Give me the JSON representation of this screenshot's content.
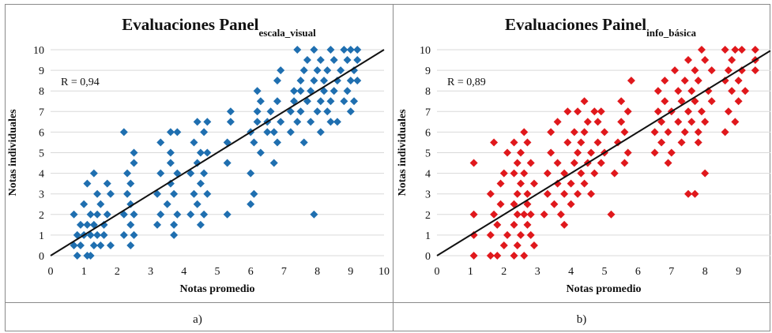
{
  "chart_data": [
    {
      "type": "scatter",
      "title": "Evaluaciones Panel",
      "title_subscript": "escala_visual",
      "xlabel": "Notas promedio",
      "ylabel": "Notas individuales",
      "xlim": [
        0,
        10
      ],
      "ylim": [
        0,
        10
      ],
      "xticks": [
        0,
        1,
        2,
        3,
        4,
        5,
        6,
        7,
        8,
        9,
        10
      ],
      "yticks": [
        0,
        1,
        2,
        3,
        4,
        5,
        6,
        7,
        8,
        9,
        10
      ],
      "annotation": "R = 0,94",
      "marker_color": "#1f6fb0",
      "trendline": {
        "x": [
          0,
          10
        ],
        "y": [
          0,
          10
        ]
      },
      "grid": "horizontal",
      "caption": "a)",
      "points": [
        [
          0.7,
          0.5
        ],
        [
          0.8,
          1
        ],
        [
          0.7,
          2
        ],
        [
          0.9,
          1.5
        ],
        [
          0.8,
          0
        ],
        [
          0.9,
          0.5
        ],
        [
          1,
          1
        ],
        [
          1,
          2.5
        ],
        [
          1.1,
          0
        ],
        [
          1.1,
          1.5
        ],
        [
          1.1,
          3.5
        ],
        [
          1.2,
          0
        ],
        [
          1.2,
          1
        ],
        [
          1.2,
          2
        ],
        [
          1.3,
          0.5
        ],
        [
          1.3,
          1.5
        ],
        [
          1.3,
          4
        ],
        [
          1.4,
          1
        ],
        [
          1.4,
          2
        ],
        [
          1.4,
          3
        ],
        [
          1.5,
          0.5
        ],
        [
          1.5,
          2.5
        ],
        [
          1.6,
          1
        ],
        [
          1.6,
          1.5
        ],
        [
          1.7,
          2
        ],
        [
          1.7,
          3.5
        ],
        [
          1.8,
          0.5
        ],
        [
          1.8,
          3
        ],
        [
          2.2,
          1
        ],
        [
          2.2,
          2
        ],
        [
          2.2,
          6
        ],
        [
          2.3,
          3
        ],
        [
          2.3,
          4
        ],
        [
          2.4,
          0.5
        ],
        [
          2.4,
          1.5
        ],
        [
          2.4,
          2.5
        ],
        [
          2.4,
          3.5
        ],
        [
          2.5,
          1
        ],
        [
          2.5,
          2
        ],
        [
          2.5,
          4.5
        ],
        [
          2.5,
          5
        ],
        [
          3.2,
          1.5
        ],
        [
          3.2,
          3
        ],
        [
          3.3,
          2
        ],
        [
          3.3,
          4
        ],
        [
          3.3,
          5.5
        ],
        [
          3.5,
          2.5
        ],
        [
          3.6,
          3.5
        ],
        [
          3.6,
          4.5
        ],
        [
          3.6,
          5
        ],
        [
          3.6,
          6
        ],
        [
          3.7,
          1
        ],
        [
          3.7,
          1.5
        ],
        [
          3.7,
          3
        ],
        [
          3.8,
          2
        ],
        [
          3.8,
          4
        ],
        [
          3.8,
          6
        ],
        [
          4.2,
          2
        ],
        [
          4.2,
          4
        ],
        [
          4.3,
          5.5
        ],
        [
          4.3,
          3
        ],
        [
          4.4,
          2.5
        ],
        [
          4.4,
          4.5
        ],
        [
          4.4,
          6.5
        ],
        [
          4.5,
          1.5
        ],
        [
          4.5,
          3.5
        ],
        [
          4.5,
          5
        ],
        [
          4.6,
          2
        ],
        [
          4.6,
          4
        ],
        [
          4.6,
          6
        ],
        [
          4.7,
          3
        ],
        [
          4.7,
          5
        ],
        [
          4.7,
          6.5
        ],
        [
          5.3,
          2
        ],
        [
          5.3,
          4.5
        ],
        [
          5.3,
          5.5
        ],
        [
          5.4,
          6.5
        ],
        [
          5.4,
          7
        ],
        [
          6,
          2.5
        ],
        [
          6,
          4
        ],
        [
          6,
          6
        ],
        [
          6.1,
          3
        ],
        [
          6.1,
          5.5
        ],
        [
          6.2,
          6.5
        ],
        [
          6.2,
          7
        ],
        [
          6.2,
          8
        ],
        [
          6.3,
          5
        ],
        [
          6.3,
          7.5
        ],
        [
          6.5,
          6
        ],
        [
          6.5,
          6.5
        ],
        [
          6.6,
          7
        ],
        [
          6.7,
          4.5
        ],
        [
          6.7,
          6
        ],
        [
          6.8,
          5.5
        ],
        [
          6.8,
          7.5
        ],
        [
          6.8,
          8.5
        ],
        [
          6.9,
          6.5
        ],
        [
          6.9,
          9
        ],
        [
          7.2,
          6
        ],
        [
          7.2,
          7
        ],
        [
          7.3,
          7.5
        ],
        [
          7.3,
          8
        ],
        [
          7.4,
          10
        ],
        [
          7.4,
          6.5
        ],
        [
          7.5,
          7
        ],
        [
          7.5,
          8
        ],
        [
          7.5,
          8.5
        ],
        [
          7.6,
          9
        ],
        [
          7.6,
          5.5
        ],
        [
          7.7,
          7.5
        ],
        [
          7.7,
          9.5
        ],
        [
          7.8,
          6.5
        ],
        [
          7.8,
          8
        ],
        [
          7.9,
          2
        ],
        [
          7.9,
          8.5
        ],
        [
          7.9,
          10
        ],
        [
          8,
          7
        ],
        [
          8,
          9
        ],
        [
          8.1,
          6
        ],
        [
          8.1,
          7.5
        ],
        [
          8.1,
          9.5
        ],
        [
          8.2,
          8
        ],
        [
          8.2,
          8.5
        ],
        [
          8.3,
          7
        ],
        [
          8.3,
          9
        ],
        [
          8.4,
          6.5
        ],
        [
          8.4,
          7.5
        ],
        [
          8.4,
          10
        ],
        [
          8.5,
          8
        ],
        [
          8.5,
          9.5
        ],
        [
          8.6,
          6.5
        ],
        [
          8.6,
          8.5
        ],
        [
          8.7,
          9
        ],
        [
          8.8,
          7.5
        ],
        [
          8.8,
          10
        ],
        [
          8.9,
          8
        ],
        [
          8.9,
          9.5
        ],
        [
          9,
          7
        ],
        [
          9,
          8.5
        ],
        [
          9,
          10
        ],
        [
          9.1,
          7.5
        ],
        [
          9.1,
          9
        ],
        [
          9.2,
          8.5
        ],
        [
          9.2,
          9.5
        ],
        [
          9.2,
          10
        ]
      ]
    },
    {
      "type": "scatter",
      "title": "Evaluaciones Painel",
      "title_subscript": "info_básica",
      "xlabel": "Notas promedio",
      "ylabel": "Notas individuales",
      "xlim": [
        0,
        10
      ],
      "ylim": [
        0,
        10
      ],
      "xticks": [
        0,
        1,
        2,
        3,
        4,
        5,
        6,
        7,
        8,
        9,
        10
      ],
      "yticks": [
        0,
        1,
        2,
        3,
        4,
        5,
        6,
        7,
        8,
        9,
        10
      ],
      "annotation": "R = 0,89",
      "marker_color": "#e0181c",
      "trendline": {
        "x": [
          0,
          10
        ],
        "y": [
          0,
          10
        ]
      },
      "grid": "horizontal",
      "caption": "b)",
      "points": [
        [
          1.1,
          0
        ],
        [
          1.1,
          1
        ],
        [
          1.1,
          2
        ],
        [
          1.1,
          4.5
        ],
        [
          1.6,
          0
        ],
        [
          1.6,
          1
        ],
        [
          1.6,
          3
        ],
        [
          1.7,
          2
        ],
        [
          1.7,
          5.5
        ],
        [
          1.8,
          0
        ],
        [
          1.8,
          1.5
        ],
        [
          1.9,
          2.5
        ],
        [
          1.9,
          3.5
        ],
        [
          2,
          0.5
        ],
        [
          2,
          4
        ],
        [
          2.1,
          1
        ],
        [
          2.1,
          5
        ],
        [
          2.3,
          0
        ],
        [
          2.3,
          1.5
        ],
        [
          2.3,
          2.5
        ],
        [
          2.3,
          4
        ],
        [
          2.3,
          5.5
        ],
        [
          2.4,
          0.5
        ],
        [
          2.4,
          2
        ],
        [
          2.4,
          3
        ],
        [
          2.4,
          4.5
        ],
        [
          2.5,
          1
        ],
        [
          2.5,
          3.5
        ],
        [
          2.5,
          5
        ],
        [
          2.6,
          0
        ],
        [
          2.6,
          2
        ],
        [
          2.6,
          4
        ],
        [
          2.6,
          6
        ],
        [
          2.7,
          1.5
        ],
        [
          2.7,
          2.5
        ],
        [
          2.7,
          3
        ],
        [
          2.7,
          5.5
        ],
        [
          2.8,
          1
        ],
        [
          2.8,
          2
        ],
        [
          2.8,
          4.5
        ],
        [
          2.9,
          0.5
        ],
        [
          2.9,
          3.5
        ],
        [
          3.2,
          2
        ],
        [
          3.3,
          3
        ],
        [
          3.3,
          4
        ],
        [
          3.4,
          5
        ],
        [
          3.4,
          6
        ],
        [
          3.5,
          2.5
        ],
        [
          3.6,
          3.5
        ],
        [
          3.6,
          4.5
        ],
        [
          3.6,
          6.5
        ],
        [
          3.7,
          2
        ],
        [
          3.8,
          1.5
        ],
        [
          3.8,
          3
        ],
        [
          3.8,
          4
        ],
        [
          3.9,
          5.5
        ],
        [
          3.9,
          7
        ],
        [
          4,
          2.5
        ],
        [
          4,
          3.5
        ],
        [
          4.1,
          4.5
        ],
        [
          4.1,
          6
        ],
        [
          4.2,
          3
        ],
        [
          4.2,
          5
        ],
        [
          4.2,
          7
        ],
        [
          4.3,
          4
        ],
        [
          4.3,
          5.5
        ],
        [
          4.4,
          3.5
        ],
        [
          4.4,
          6
        ],
        [
          4.4,
          7.5
        ],
        [
          4.5,
          4.5
        ],
        [
          4.5,
          6.5
        ],
        [
          4.6,
          3
        ],
        [
          4.6,
          5
        ],
        [
          4.7,
          4
        ],
        [
          4.7,
          7
        ],
        [
          4.8,
          5.5
        ],
        [
          4.8,
          6.5
        ],
        [
          4.9,
          4.5
        ],
        [
          4.9,
          7
        ],
        [
          5,
          5
        ],
        [
          5,
          6
        ],
        [
          5.2,
          2
        ],
        [
          5.3,
          4
        ],
        [
          5.4,
          5.5
        ],
        [
          5.5,
          6.5
        ],
        [
          5.5,
          7.5
        ],
        [
          5.6,
          4.5
        ],
        [
          5.6,
          6
        ],
        [
          5.7,
          5
        ],
        [
          5.7,
          7
        ],
        [
          5.8,
          8.5
        ],
        [
          6.5,
          5
        ],
        [
          6.5,
          6
        ],
        [
          6.6,
          7
        ],
        [
          6.6,
          8
        ],
        [
          6.7,
          5.5
        ],
        [
          6.7,
          6.5
        ],
        [
          6.8,
          7.5
        ],
        [
          6.8,
          8.5
        ],
        [
          6.9,
          4.5
        ],
        [
          6.9,
          6
        ],
        [
          7,
          5
        ],
        [
          7,
          7
        ],
        [
          7.1,
          9
        ],
        [
          7.2,
          6.5
        ],
        [
          7.2,
          8
        ],
        [
          7.3,
          5.5
        ],
        [
          7.3,
          7.5
        ],
        [
          7.4,
          6
        ],
        [
          7.4,
          8.5
        ],
        [
          7.5,
          3
        ],
        [
          7.5,
          7
        ],
        [
          7.5,
          9.5
        ],
        [
          7.6,
          6.5
        ],
        [
          7.6,
          8
        ],
        [
          7.7,
          3
        ],
        [
          7.7,
          7.5
        ],
        [
          7.7,
          9
        ],
        [
          7.8,
          5.5
        ],
        [
          7.8,
          6
        ],
        [
          7.8,
          8.5
        ],
        [
          7.9,
          7
        ],
        [
          7.9,
          10
        ],
        [
          8,
          4
        ],
        [
          8,
          6.5
        ],
        [
          8,
          9.5
        ],
        [
          8.1,
          8
        ],
        [
          8.2,
          7.5
        ],
        [
          8.2,
          9
        ],
        [
          8.6,
          6
        ],
        [
          8.6,
          8.5
        ],
        [
          8.6,
          10
        ],
        [
          8.7,
          7
        ],
        [
          8.7,
          9
        ],
        [
          8.8,
          8
        ],
        [
          8.8,
          9.5
        ],
        [
          8.9,
          6.5
        ],
        [
          8.9,
          10
        ],
        [
          9,
          7.5
        ],
        [
          9,
          8.5
        ],
        [
          9.1,
          9
        ],
        [
          9.1,
          10
        ],
        [
          9.2,
          8
        ],
        [
          9.5,
          9.5
        ],
        [
          9.5,
          10
        ],
        [
          9.5,
          9
        ]
      ]
    }
  ]
}
